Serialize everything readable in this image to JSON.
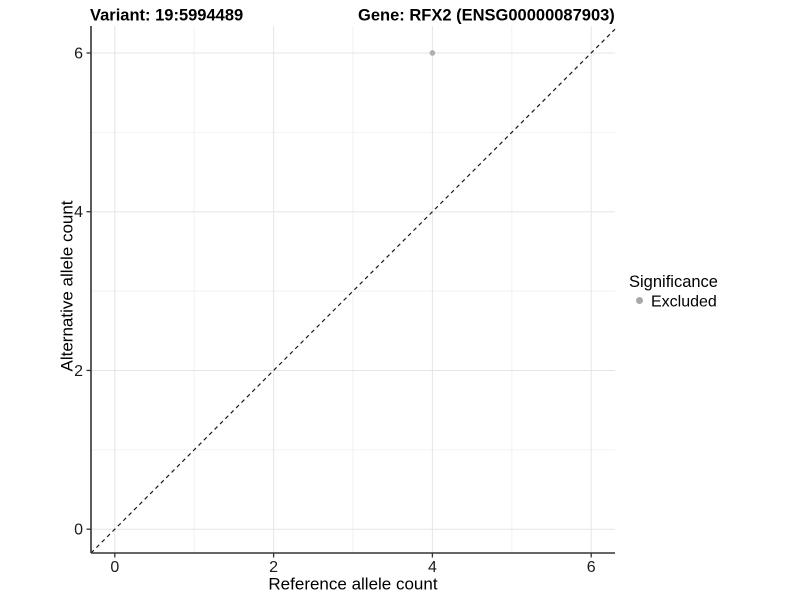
{
  "chart_data": {
    "type": "scatter",
    "titles": {
      "left": "Variant: 19:5994489",
      "right": "Gene: RFX2 (ENSG00000087903)"
    },
    "x_label": "Reference allele count",
    "y_label": "Alternative allele count",
    "x_ticks": [
      0,
      2,
      4,
      6
    ],
    "y_ticks": [
      0,
      2,
      4,
      6
    ],
    "x_minor_ticks": [
      1,
      3,
      5
    ],
    "y_minor_ticks": [
      1,
      3,
      5
    ],
    "xlim": [
      -0.3,
      6.3
    ],
    "ylim": [
      -0.3,
      6.34
    ],
    "grid": true,
    "points": [
      {
        "x": 4,
        "y": 6,
        "series": "Excluded"
      }
    ],
    "reference_line": {
      "kind": "identity",
      "style": "dashed",
      "from": -0.3,
      "to": 6.3
    },
    "legend": {
      "position": "right",
      "title": "Significance",
      "entries": [
        {
          "label": "Excluded",
          "color": "#b0b0b0"
        }
      ]
    }
  },
  "colors": {
    "background": "#ffffff",
    "major_grid": "#e5e5e5",
    "minor_grid": "#f2f2f2",
    "axis_line": "#333333",
    "tick_mark": "#333333",
    "tick_label": "#1a1a1a",
    "ref_line": "#1a1a1a",
    "point": "#b0b0b0",
    "legend_point": "#a8a8a8"
  }
}
